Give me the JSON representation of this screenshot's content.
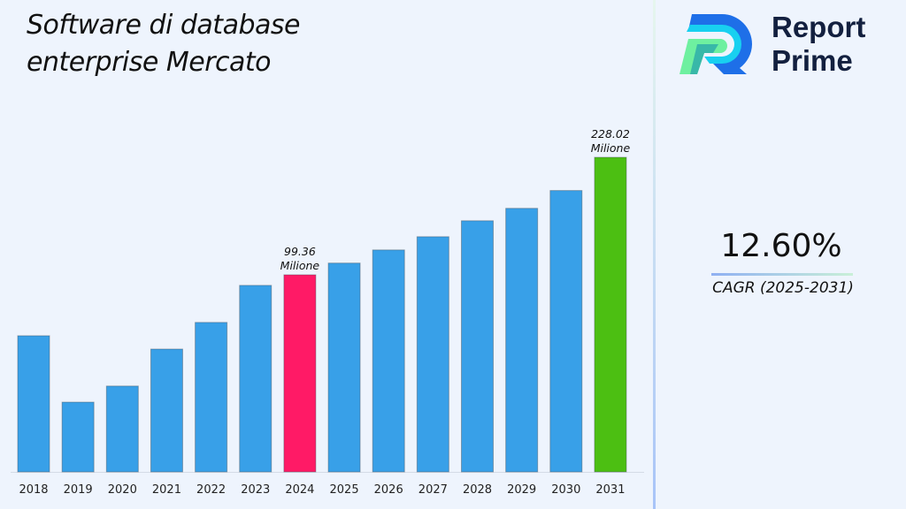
{
  "header": {
    "title_line1": "Software di database",
    "title_line2": "enterprise Mercato"
  },
  "brand": {
    "line1": "Report",
    "line2": "Prime"
  },
  "cagr": {
    "value": "12.60%",
    "label": "CAGR (2025-2031)"
  },
  "chart_data": {
    "type": "bar",
    "title": "Software di database enterprise Mercato",
    "categories": [
      "2018",
      "2019",
      "2020",
      "2021",
      "2022",
      "2023",
      "2024",
      "2025",
      "2026",
      "2027",
      "2028",
      "2029",
      "2030",
      "2031"
    ],
    "values": [
      51.5,
      15.7,
      22.7,
      42.9,
      60.8,
      90.1,
      99.36,
      110.1,
      122.7,
      136.0,
      152.8,
      166.5,
      187.0,
      228.02
    ],
    "data_labels": [
      {
        "category": "2024",
        "value": "99.36",
        "unit": "Milione"
      },
      {
        "category": "2031",
        "value": "228.02",
        "unit": "Milione"
      }
    ],
    "colors": {
      "default": "#38a0e8",
      "2024": "#ff1a66",
      "2031": "#4cbf12"
    },
    "xlabel": "",
    "ylabel": "",
    "grid": false,
    "legend": "none"
  }
}
